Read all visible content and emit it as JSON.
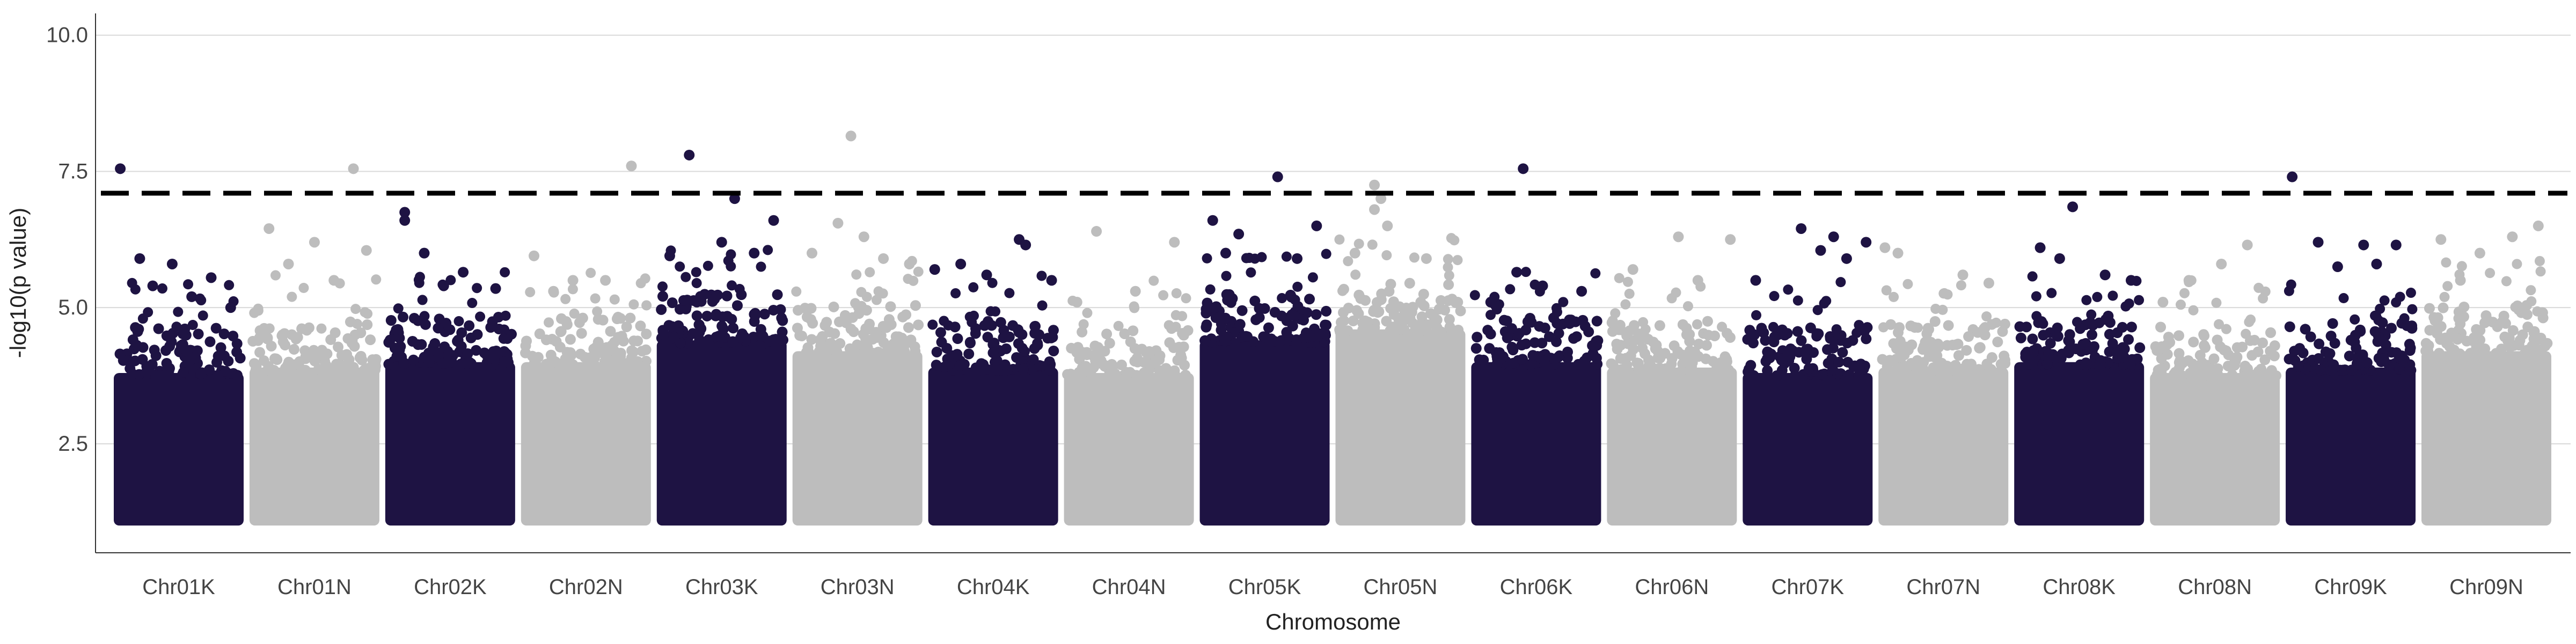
{
  "chart_data": {
    "type": "scatter",
    "subtype": "manhattan",
    "title": "",
    "xlabel": "Chromosome",
    "ylabel": "-log10(p value)",
    "ylim": [
      0.5,
      10.4
    ],
    "yticks": [
      2.5,
      5.0,
      7.5,
      10.0
    ],
    "ytick_labels": [
      "2.5",
      "5.0",
      "7.5",
      "10.0"
    ],
    "grid": "horizontal major lines",
    "significance_threshold": 7.1,
    "threshold_style": "dashed black line",
    "colors": {
      "odd": "#1e1343",
      "even": "#bdbdbd",
      "threshold": "#000000",
      "grid": "#d9d9d9",
      "axis": "#333333"
    },
    "categories": [
      "Chr01K",
      "Chr01N",
      "Chr02K",
      "Chr02N",
      "Chr03K",
      "Chr03N",
      "Chr04K",
      "Chr04N",
      "Chr05K",
      "Chr05N",
      "Chr06K",
      "Chr06N",
      "Chr07K",
      "Chr07N",
      "Chr08K",
      "Chr08N",
      "Chr09K",
      "Chr09N"
    ],
    "series": [
      {
        "chromosome": "Chr01K",
        "color": "#1e1343",
        "dense_upper_bound": 4.2,
        "top_points": [
          [
            0.05,
            7.55
          ],
          [
            0.2,
            5.9
          ],
          [
            0.45,
            5.8
          ],
          [
            0.75,
            5.55
          ],
          [
            0.9,
            5.0
          ],
          [
            0.3,
            5.4
          ],
          [
            0.6,
            5.2
          ]
        ]
      },
      {
        "chromosome": "Chr01N",
        "color": "#bdbdbd",
        "dense_upper_bound": 4.3,
        "top_points": [
          [
            0.8,
            7.55
          ],
          [
            0.15,
            6.45
          ],
          [
            0.5,
            6.2
          ],
          [
            0.9,
            6.05
          ],
          [
            0.3,
            5.8
          ],
          [
            0.65,
            5.5
          ]
        ]
      },
      {
        "chromosome": "Chr02K",
        "color": "#1e1343",
        "dense_upper_bound": 4.4,
        "top_points": [
          [
            0.15,
            6.75
          ],
          [
            0.15,
            6.6
          ],
          [
            0.3,
            6.0
          ],
          [
            0.6,
            5.65
          ],
          [
            0.85,
            5.35
          ],
          [
            0.45,
            5.4
          ]
        ]
      },
      {
        "chromosome": "Chr02N",
        "color": "#bdbdbd",
        "dense_upper_bound": 4.4,
        "top_points": [
          [
            0.85,
            7.6
          ],
          [
            0.1,
            5.95
          ],
          [
            0.4,
            5.5
          ],
          [
            0.65,
            5.5
          ],
          [
            0.25,
            5.3
          ]
        ]
      },
      {
        "chromosome": "Chr03K",
        "color": "#1e1343",
        "dense_upper_bound": 4.8,
        "top_points": [
          [
            0.25,
            7.8
          ],
          [
            0.6,
            7.0
          ],
          [
            0.9,
            6.6
          ],
          [
            0.5,
            6.2
          ],
          [
            0.1,
            5.95
          ],
          [
            0.75,
            6.0
          ]
        ]
      },
      {
        "chromosome": "Chr03N",
        "color": "#bdbdbd",
        "dense_upper_bound": 4.6,
        "top_points": [
          [
            0.45,
            8.15
          ],
          [
            0.35,
            6.55
          ],
          [
            0.15,
            6.0
          ],
          [
            0.7,
            5.9
          ],
          [
            0.9,
            5.8
          ],
          [
            0.55,
            6.3
          ]
        ]
      },
      {
        "chromosome": "Chr04K",
        "color": "#1e1343",
        "dense_upper_bound": 4.3,
        "top_points": [
          [
            0.7,
            6.25
          ],
          [
            0.75,
            6.15
          ],
          [
            0.25,
            5.8
          ],
          [
            0.05,
            5.7
          ],
          [
            0.45,
            5.6
          ],
          [
            0.95,
            5.5
          ]
        ]
      },
      {
        "chromosome": "Chr04N",
        "color": "#bdbdbd",
        "dense_upper_bound": 4.2,
        "top_points": [
          [
            0.25,
            6.4
          ],
          [
            0.85,
            6.2
          ],
          [
            0.55,
            5.3
          ],
          [
            0.1,
            5.1
          ]
        ]
      },
      {
        "chromosome": "Chr05K",
        "color": "#1e1343",
        "dense_upper_bound": 4.8,
        "top_points": [
          [
            0.6,
            7.4
          ],
          [
            0.1,
            6.6
          ],
          [
            0.9,
            6.5
          ],
          [
            0.3,
            6.35
          ],
          [
            0.2,
            6.0
          ],
          [
            0.75,
            5.9
          ]
        ]
      },
      {
        "chromosome": "Chr05N",
        "color": "#bdbdbd",
        "dense_upper_bound": 5.0,
        "top_points": [
          [
            0.3,
            7.25
          ],
          [
            0.35,
            7.0
          ],
          [
            0.3,
            6.8
          ],
          [
            0.4,
            6.5
          ],
          [
            0.15,
            6.0
          ],
          [
            0.7,
            5.9
          ]
        ]
      },
      {
        "chromosome": "Chr06K",
        "color": "#1e1343",
        "dense_upper_bound": 4.4,
        "top_points": [
          [
            0.4,
            7.55
          ],
          [
            0.35,
            5.65
          ],
          [
            0.55,
            5.4
          ],
          [
            0.85,
            5.3
          ],
          [
            0.15,
            5.1
          ]
        ]
      },
      {
        "chromosome": "Chr06N",
        "color": "#bdbdbd",
        "dense_upper_bound": 4.3,
        "top_points": [
          [
            0.55,
            6.3
          ],
          [
            0.95,
            6.25
          ],
          [
            0.2,
            5.7
          ],
          [
            0.7,
            5.5
          ]
        ]
      },
      {
        "chromosome": "Chr07K",
        "color": "#1e1343",
        "dense_upper_bound": 4.2,
        "top_points": [
          [
            0.45,
            6.45
          ],
          [
            0.7,
            6.3
          ],
          [
            0.95,
            6.2
          ],
          [
            0.6,
            6.05
          ],
          [
            0.1,
            5.5
          ],
          [
            0.8,
            5.9
          ]
        ]
      },
      {
        "chromosome": "Chr07N",
        "color": "#bdbdbd",
        "dense_upper_bound": 4.3,
        "top_points": [
          [
            0.05,
            6.1
          ],
          [
            0.15,
            6.0
          ],
          [
            0.65,
            5.6
          ],
          [
            0.85,
            5.45
          ]
        ]
      },
      {
        "chromosome": "Chr08K",
        "color": "#1e1343",
        "dense_upper_bound": 4.4,
        "top_points": [
          [
            0.45,
            6.85
          ],
          [
            0.2,
            6.1
          ],
          [
            0.35,
            5.9
          ],
          [
            0.7,
            5.6
          ],
          [
            0.9,
            5.5
          ]
        ]
      },
      {
        "chromosome": "Chr08N",
        "color": "#bdbdbd",
        "dense_upper_bound": 4.2,
        "top_points": [
          [
            0.75,
            6.15
          ],
          [
            0.55,
            5.8
          ],
          [
            0.3,
            5.5
          ],
          [
            0.1,
            5.1
          ]
        ]
      },
      {
        "chromosome": "Chr09K",
        "color": "#1e1343",
        "dense_upper_bound": 4.3,
        "top_points": [
          [
            0.05,
            7.4
          ],
          [
            0.25,
            6.2
          ],
          [
            0.6,
            6.15
          ],
          [
            0.85,
            6.15
          ],
          [
            0.4,
            5.75
          ],
          [
            0.7,
            5.8
          ]
        ]
      },
      {
        "chromosome": "Chr09N",
        "color": "#bdbdbd",
        "dense_upper_bound": 4.6,
        "top_points": [
          [
            0.9,
            6.5
          ],
          [
            0.7,
            6.3
          ],
          [
            0.15,
            6.25
          ],
          [
            0.45,
            6.0
          ],
          [
            0.3,
            5.5
          ]
        ]
      }
    ]
  }
}
